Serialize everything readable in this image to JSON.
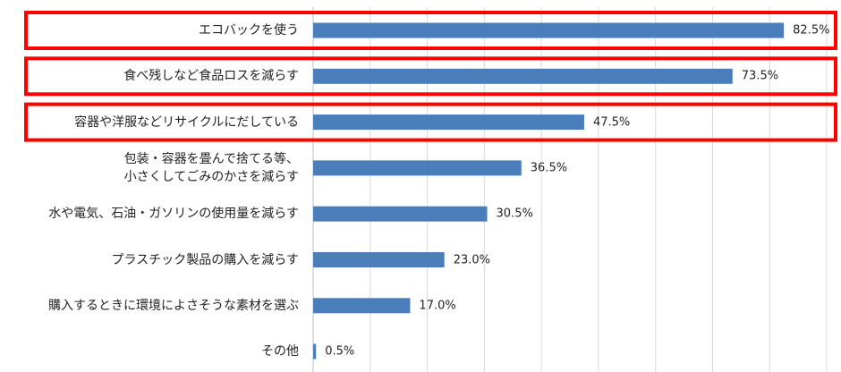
{
  "chart_data": {
    "type": "bar",
    "orientation": "horizontal",
    "categories": [
      "エコバックを使う",
      "食べ残しなど食品ロスを減らす",
      "容器や洋服などリサイクルにだしている",
      "包装・容器を畳んで捨てる等、\n小さくしてごみのかさを減らす",
      "水や電気、石油・ガソリンの使用量を減らす",
      "プラスチック製品の購入を減らす",
      "購入するときに環境によさそうな素材を選ぶ",
      "その他"
    ],
    "values": [
      82.5,
      73.5,
      47.5,
      36.5,
      30.5,
      23.0,
      17.0,
      0.5
    ],
    "value_labels": [
      "82.5%",
      "73.5%",
      "47.5%",
      "36.5%",
      "30.5%",
      "23.0%",
      "17.0%",
      "0.5%"
    ],
    "color": "#4a7ebb",
    "xlim": [
      0,
      90
    ],
    "xticks": [
      0,
      10,
      20,
      30,
      40,
      50,
      60,
      70,
      80,
      90
    ],
    "grid": true,
    "highlight": [
      0,
      1,
      2
    ],
    "highlight_color": "#ff0000"
  }
}
